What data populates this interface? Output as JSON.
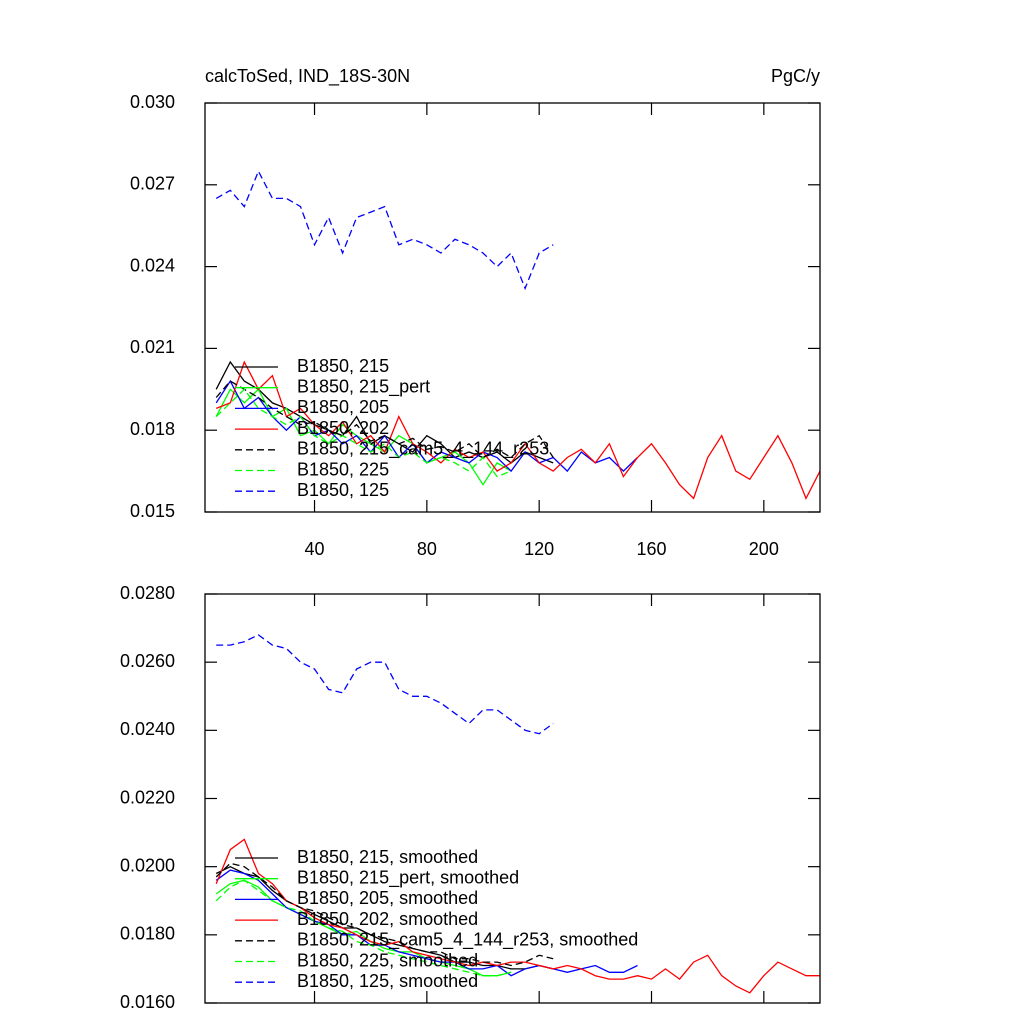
{
  "chart_data": [
    {
      "type": "line",
      "title": "calcToSed, IND_18S-30N",
      "units": "PgC/y",
      "x": [
        5,
        10,
        15,
        20,
        25,
        30,
        35,
        40,
        45,
        50,
        55,
        60,
        65,
        70,
        75,
        80,
        85,
        90,
        95,
        100,
        105,
        110,
        115,
        120,
        125,
        130,
        135,
        140,
        145,
        150,
        155,
        160,
        165,
        170,
        175,
        180,
        185,
        190,
        195,
        200,
        205,
        210,
        215,
        220
      ],
      "xlim": [
        1,
        220
      ],
      "ylim": [
        0.015,
        0.03
      ],
      "xticks": [
        40,
        80,
        120,
        160,
        200
      ],
      "yticks": [
        0.015,
        0.018,
        0.021,
        0.024,
        0.027,
        {
          "value": 0.03,
          "label": "0.030"
        }
      ],
      "series": [
        {
          "name": "B1850, 215",
          "color": "#000000",
          "dash": false,
          "values": [
            0.0195,
            0.0205,
            0.0198,
            0.0195,
            0.019,
            0.0188,
            0.0185,
            0.0182,
            0.018,
            0.0178,
            0.0185,
            0.0175,
            0.0178,
            0.0175,
            0.0172,
            0.0178,
            0.0175,
            0.017,
            0.0172,
            0.017,
            0.0172,
            0.0168,
            0.0172,
            0.017,
            0.0168,
            null,
            null,
            null,
            null,
            null,
            null,
            null,
            null,
            null,
            null,
            null,
            null,
            null,
            null,
            null,
            null,
            null,
            null,
            null
          ]
        },
        {
          "name": "B1850, 215_pert",
          "color": "#00ff00",
          "dash": false,
          "values": [
            0.0185,
            0.0195,
            0.019,
            0.0195,
            0.0185,
            0.0188,
            0.0178,
            0.018,
            0.0175,
            0.0182,
            0.0178,
            0.0175,
            0.0172,
            0.0178,
            0.0175,
            0.0168,
            0.017,
            0.0172,
            0.0168,
            0.016,
            0.0168,
            0.0165,
            null,
            null,
            null,
            null,
            null,
            null,
            null,
            null,
            null,
            null,
            null,
            null,
            null,
            null,
            null,
            null,
            null,
            null,
            null,
            null,
            null,
            null
          ]
        },
        {
          "name": "B1850, 205",
          "color": "#0000ff",
          "dash": false,
          "values": [
            0.019,
            0.0198,
            0.0188,
            0.0192,
            0.0185,
            0.018,
            0.0185,
            0.0178,
            0.018,
            0.0175,
            0.0178,
            0.0172,
            0.0178,
            0.017,
            0.0175,
            0.0168,
            0.0172,
            0.017,
            0.0168,
            0.0172,
            0.017,
            0.0165,
            0.0172,
            0.0168,
            0.017,
            0.0165,
            0.0172,
            0.0168,
            0.017,
            0.0165,
            0.017,
            null,
            null,
            null,
            null,
            null,
            null,
            null,
            null,
            null,
            null,
            null,
            null,
            null
          ]
        },
        {
          "name": "B1850, 202",
          "color": "#ff0000",
          "dash": false,
          "values": [
            0.0188,
            0.019,
            0.0205,
            0.0195,
            0.02,
            0.0185,
            0.0188,
            0.0182,
            0.0178,
            0.0183,
            0.0175,
            0.0178,
            0.0172,
            0.0185,
            0.0175,
            0.0172,
            0.0168,
            0.0173,
            0.017,
            0.0172,
            0.0165,
            0.0168,
            0.0175,
            0.0168,
            0.0165,
            0.017,
            0.0173,
            0.0168,
            0.0175,
            0.0163,
            0.017,
            0.0175,
            0.0168,
            0.016,
            0.0155,
            0.017,
            0.0178,
            0.0165,
            0.0162,
            0.017,
            0.0178,
            0.0168,
            0.0155,
            0.0165
          ]
        },
        {
          "name": "B1850, 215_cam5_4_144_r253",
          "color": "#000000",
          "dash": true,
          "values": [
            0.0192,
            0.0198,
            0.0195,
            0.0192,
            0.0188,
            0.0185,
            0.0182,
            0.0183,
            0.018,
            0.0178,
            0.0182,
            0.0176,
            0.0178,
            0.0175,
            0.0177,
            0.0173,
            0.0174,
            0.0172,
            0.0175,
            0.017,
            0.0173,
            0.017,
            0.0175,
            0.0178,
            0.017,
            null,
            null,
            null,
            null,
            null,
            null,
            null,
            null,
            null,
            null,
            null,
            null,
            null,
            null,
            null,
            null,
            null,
            null,
            null
          ]
        },
        {
          "name": "B1850, 225",
          "color": "#00ff00",
          "dash": true,
          "values": [
            0.0185,
            0.019,
            0.0195,
            0.0188,
            0.0185,
            0.0182,
            0.0185,
            0.0178,
            0.0175,
            0.0178,
            0.0175,
            0.0172,
            0.0175,
            0.017,
            0.0172,
            0.0168,
            0.017,
            0.0168,
            0.0165,
            0.017,
            0.0163,
            0.0165,
            null,
            null,
            null,
            null,
            null,
            null,
            null,
            null,
            null,
            null,
            null,
            null,
            null,
            null,
            null,
            null,
            null,
            null,
            null,
            null,
            null,
            null
          ]
        },
        {
          "name": "B1850, 125",
          "color": "#0000ff",
          "dash": true,
          "values": [
            0.0265,
            0.0268,
            0.0262,
            0.0275,
            0.0265,
            0.0265,
            0.0262,
            0.0248,
            0.0258,
            0.0245,
            0.0258,
            0.026,
            0.0262,
            0.0248,
            0.025,
            0.0248,
            0.0245,
            0.025,
            0.0248,
            0.0245,
            0.024,
            0.0245,
            0.0232,
            0.0245,
            0.0248,
            null,
            null,
            null,
            null,
            null,
            null,
            null,
            null,
            null,
            null,
            null,
            null,
            null,
            null,
            null,
            null,
            null,
            null,
            null
          ]
        }
      ]
    },
    {
      "type": "line",
      "x": [
        5,
        10,
        15,
        20,
        25,
        30,
        35,
        40,
        45,
        50,
        55,
        60,
        65,
        70,
        75,
        80,
        85,
        90,
        95,
        100,
        105,
        110,
        115,
        120,
        125,
        130,
        135,
        140,
        145,
        150,
        155,
        160,
        165,
        170,
        175,
        180,
        185,
        190,
        195,
        200,
        205,
        210,
        215,
        220
      ],
      "xlim": [
        1,
        220
      ],
      "ylim": [
        0.016,
        0.028
      ],
      "xticks": [
        40,
        80,
        120,
        160,
        200
      ],
      "yticks": [
        {
          "value": 0.016,
          "label": "0.0160"
        },
        {
          "value": 0.018,
          "label": "0.0180"
        },
        {
          "value": 0.02,
          "label": "0.0200"
        },
        {
          "value": 0.022,
          "label": "0.0220"
        },
        {
          "value": 0.024,
          "label": "0.0240"
        },
        {
          "value": 0.026,
          "label": "0.0260"
        },
        {
          "value": 0.028,
          "label": "0.0280"
        }
      ],
      "series": [
        {
          "name": "B1850, 215, smoothed",
          "color": "#000000",
          "dash": false,
          "values": [
            0.0198,
            0.02,
            0.0198,
            0.0197,
            0.0193,
            0.019,
            0.0188,
            0.0186,
            0.0184,
            0.0182,
            0.0182,
            0.018,
            0.0178,
            0.0177,
            0.0176,
            0.0175,
            0.0174,
            0.0172,
            0.0172,
            0.0171,
            0.0171,
            0.017,
            0.017,
            0.0171,
            0.017,
            null,
            null,
            null,
            null,
            null,
            null,
            null,
            null,
            null,
            null,
            null,
            null,
            null,
            null,
            null,
            null,
            null,
            null,
            null
          ]
        },
        {
          "name": "B1850, 215_pert, smoothed",
          "color": "#00ff00",
          "dash": false,
          "values": [
            0.0192,
            0.0195,
            0.0196,
            0.0194,
            0.019,
            0.0188,
            0.0186,
            0.0184,
            0.0182,
            0.018,
            0.0181,
            0.0178,
            0.0176,
            0.0175,
            0.0175,
            0.0173,
            0.0172,
            0.0171,
            0.017,
            0.0168,
            0.0168,
            0.0169,
            null,
            null,
            null,
            null,
            null,
            null,
            null,
            null,
            null,
            null,
            null,
            null,
            null,
            null,
            null,
            null,
            null,
            null,
            null,
            null,
            null,
            null
          ]
        },
        {
          "name": "B1850, 205, smoothed",
          "color": "#0000ff",
          "dash": false,
          "values": [
            0.0196,
            0.0199,
            0.0198,
            0.0196,
            0.0192,
            0.0188,
            0.0186,
            0.0184,
            0.0183,
            0.018,
            0.018,
            0.0177,
            0.0177,
            0.0175,
            0.0174,
            0.0173,
            0.0172,
            0.0172,
            0.017,
            0.017,
            0.0171,
            0.0168,
            0.017,
            0.0171,
            0.017,
            0.0169,
            0.017,
            0.0171,
            0.0169,
            0.0169,
            0.0171,
            null,
            null,
            null,
            null,
            null,
            null,
            null,
            null,
            null,
            null,
            null,
            null,
            null
          ]
        },
        {
          "name": "B1850, 202, smoothed",
          "color": "#ff0000",
          "dash": false,
          "values": [
            0.0195,
            0.0205,
            0.0208,
            0.0198,
            0.0195,
            0.019,
            0.0188,
            0.0185,
            0.0183,
            0.0182,
            0.018,
            0.0178,
            0.0177,
            0.0178,
            0.0175,
            0.0174,
            0.0173,
            0.0172,
            0.0171,
            0.0172,
            0.0171,
            0.0172,
            0.0172,
            0.0171,
            0.017,
            0.0171,
            0.017,
            0.0168,
            0.0167,
            0.0167,
            0.0168,
            0.0167,
            0.017,
            0.0167,
            0.0172,
            0.0174,
            0.0168,
            0.0165,
            0.0163,
            0.0168,
            0.0172,
            0.017,
            0.0168,
            0.0168
          ]
        },
        {
          "name": "B1850, 215_cam5_4_144_r253, smoothed",
          "color": "#000000",
          "dash": true,
          "values": [
            0.0197,
            0.0201,
            0.02,
            0.0197,
            0.0194,
            0.019,
            0.0188,
            0.0187,
            0.0185,
            0.0183,
            0.0182,
            0.018,
            0.0179,
            0.0178,
            0.0176,
            0.0175,
            0.0175,
            0.0173,
            0.0173,
            0.0172,
            0.0172,
            0.0171,
            0.0172,
            0.0174,
            0.0173,
            null,
            null,
            null,
            null,
            null,
            null,
            null,
            null,
            null,
            null,
            null,
            null,
            null,
            null,
            null,
            null,
            null,
            null,
            null
          ]
        },
        {
          "name": "B1850, 225, smoothed",
          "color": "#00ff00",
          "dash": true,
          "values": [
            0.019,
            0.0194,
            0.0196,
            0.0193,
            0.019,
            0.0188,
            0.0187,
            0.0184,
            0.0182,
            0.0181,
            0.0178,
            0.0177,
            0.0175,
            0.0174,
            0.0173,
            0.0172,
            0.0171,
            0.017,
            0.0169,
            0.0168,
            0.0168,
            0.0169,
            null,
            null,
            null,
            null,
            null,
            null,
            null,
            null,
            null,
            null,
            null,
            null,
            null,
            null,
            null,
            null,
            null,
            null,
            null,
            null,
            null,
            null
          ]
        },
        {
          "name": "B1850, 125, smoothed",
          "color": "#0000ff",
          "dash": true,
          "values": [
            0.0265,
            0.0265,
            0.0266,
            0.0268,
            0.0265,
            0.0264,
            0.026,
            0.0258,
            0.0252,
            0.0251,
            0.0258,
            0.026,
            0.026,
            0.0252,
            0.025,
            0.025,
            0.0248,
            0.0245,
            0.0242,
            0.0246,
            0.0246,
            0.0243,
            0.024,
            0.0239,
            0.0242,
            null,
            null,
            null,
            null,
            null,
            null,
            null,
            null,
            null,
            null,
            null,
            null,
            null,
            null,
            null,
            null,
            null,
            null,
            null
          ]
        }
      ]
    }
  ]
}
